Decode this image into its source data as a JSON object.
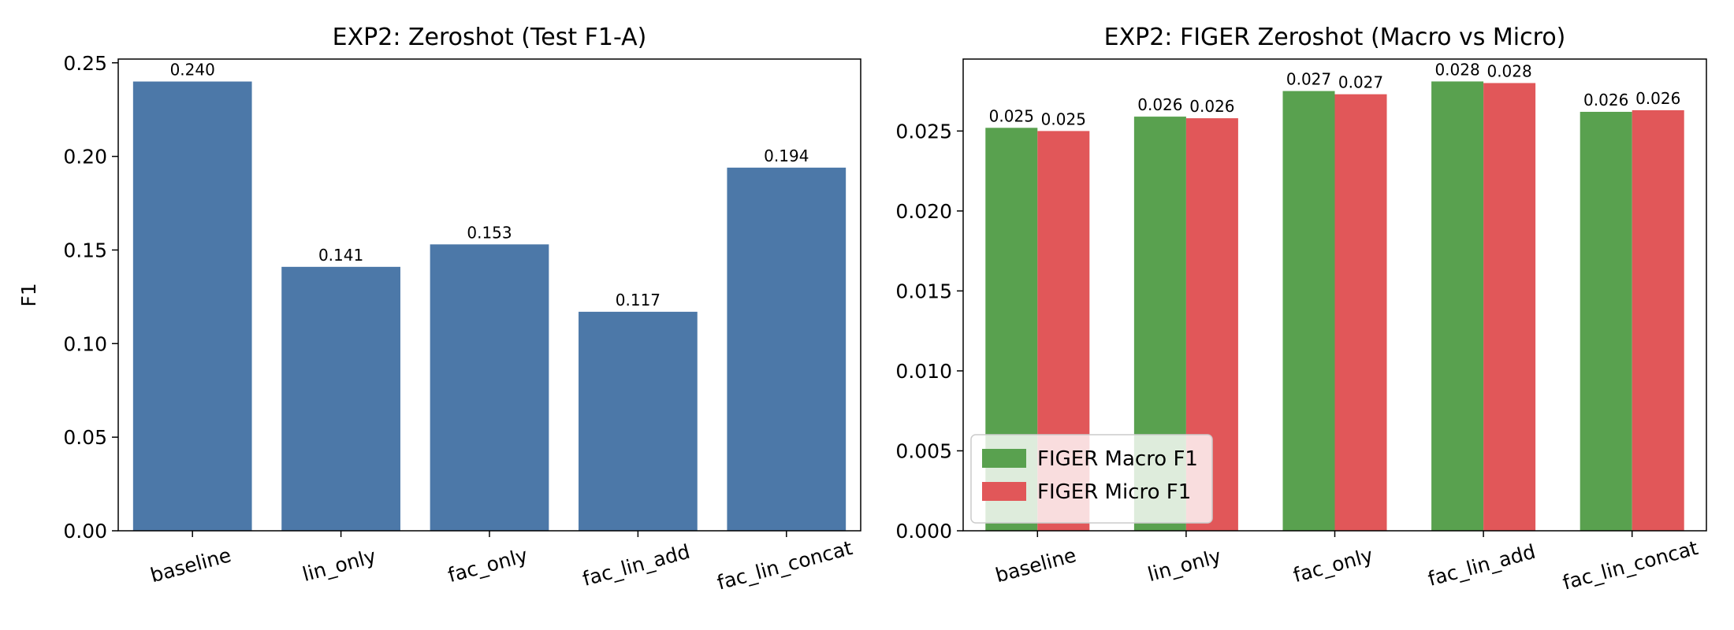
{
  "chart_data": [
    {
      "type": "bar",
      "title": "EXP2: Zeroshot (Test F1-A)",
      "xlabel": "",
      "ylabel": "F1",
      "categories": [
        "baseline",
        "lin_only",
        "fac_only",
        "fac_lin_add",
        "fac_lin_concat"
      ],
      "values": [
        0.24,
        0.141,
        0.153,
        0.117,
        0.194
      ],
      "value_labels": [
        "0.240",
        "0.141",
        "0.153",
        "0.117",
        "0.194"
      ],
      "ylim": [
        0,
        0.252
      ],
      "yticks": [
        0.0,
        0.05,
        0.1,
        0.15,
        0.2,
        0.25
      ],
      "ytick_labels": [
        "0.00",
        "0.05",
        "0.10",
        "0.15",
        "0.20",
        "0.25"
      ],
      "colors": [
        "#4c78a8"
      ],
      "grid": false,
      "legend": null
    },
    {
      "type": "bar",
      "title": "EXP2: FIGER Zeroshot (Macro vs Micro)",
      "xlabel": "",
      "ylabel": "",
      "categories": [
        "baseline",
        "lin_only",
        "fac_only",
        "fac_lin_add",
        "fac_lin_concat"
      ],
      "series": [
        {
          "name": "FIGER Macro F1",
          "color": "#59a14f",
          "values": [
            0.0252,
            0.0259,
            0.0275,
            0.0281,
            0.0262
          ],
          "value_labels": [
            "0.025",
            "0.026",
            "0.027",
            "0.028",
            "0.026"
          ]
        },
        {
          "name": "FIGER Micro F1",
          "color": "#e15759",
          "values": [
            0.025,
            0.0258,
            0.0273,
            0.028,
            0.0263
          ],
          "value_labels": [
            "0.025",
            "0.026",
            "0.027",
            "0.028",
            "0.026"
          ]
        }
      ],
      "ylim": [
        0,
        0.0295
      ],
      "yticks": [
        0.0,
        0.005,
        0.01,
        0.015,
        0.02,
        0.025
      ],
      "ytick_labels": [
        "0.000",
        "0.005",
        "0.010",
        "0.015",
        "0.020",
        "0.025"
      ],
      "grid": false,
      "legend": "lower-left"
    }
  ]
}
